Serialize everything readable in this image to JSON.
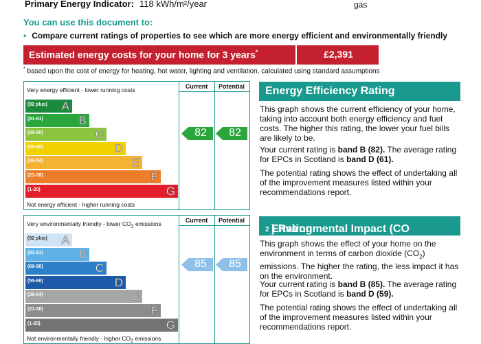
{
  "header": {
    "pei_label": "Primary Energy Indicator:",
    "pei_value": "118 kWh/m²/year",
    "fuel": "gas"
  },
  "uses": {
    "title": "You can use this document to:",
    "bullet": "Compare current ratings of properties to see which are more energy efficient and environmentally friendly"
  },
  "cost": {
    "label": "Estimated energy costs for your home for 3 years",
    "marker": "*",
    "value": "£2,391",
    "footnote_marker": "*",
    "footnote": " based upon the cost of energy for heating, hot water, lighting and ventilation, calculated using standard assumptions"
  },
  "energy_chart": {
    "col_current": "Current",
    "col_potential": "Potential",
    "top_text": "Very energy efficient - lower running costs",
    "bottom_text": "Not energy efficient - higher running costs",
    "bands": [
      {
        "range": "(92 plus)",
        "letter": "A",
        "color": "#1a8a3c"
      },
      {
        "range": "(81-91)",
        "letter": "B",
        "color": "#2aa63c"
      },
      {
        "range": "(69-80)",
        "letter": "C",
        "color": "#8cc43f"
      },
      {
        "range": "(55-68)",
        "letter": "D",
        "color": "#f2d100"
      },
      {
        "range": "(39-54)",
        "letter": "E",
        "color": "#f5b335"
      },
      {
        "range": "(21-38)",
        "letter": "F",
        "color": "#ee7d2a"
      },
      {
        "range": "(1-20)",
        "letter": "G",
        "color": "#e31d2a"
      }
    ],
    "current": "82",
    "potential": "82",
    "arrow_color": "#2aa63c"
  },
  "env_chart": {
    "col_current": "Current",
    "col_potential": "Potential",
    "top_text_pre": "Very environmentally friendly - lower CO",
    "top_text_sub": "2",
    "top_text_post": " emissions",
    "bottom_text_pre": "Not environmentally friendly - higher CO",
    "bottom_text_sub": "2",
    "bottom_text_post": " emissions",
    "bands": [
      {
        "range": "(92 plus)",
        "letter": "A",
        "color": "#cfe3f4"
      },
      {
        "range": "(81-91)",
        "letter": "B",
        "color": "#5eb2e8"
      },
      {
        "range": "(69-80)",
        "letter": "C",
        "color": "#2e7fc9"
      },
      {
        "range": "(55-68)",
        "letter": "D",
        "color": "#1d5ba8"
      },
      {
        "range": "(39-54)",
        "letter": "E",
        "color": "#a6a6a6"
      },
      {
        "range": "(21-38)",
        "letter": "F",
        "color": "#8c8c8c"
      },
      {
        "range": "(1-20)",
        "letter": "G",
        "color": "#737373"
      }
    ],
    "current": "85",
    "potential": "85",
    "arrow_color": "#8fc0e8"
  },
  "eer_panel": {
    "title": "Energy Efficiency Rating",
    "p1": "This graph shows the current efficiency of your home, taking into account both energy efficiency and fuel costs. The higher this rating, the lower your fuel bills are likely to be.",
    "p2_pre": "Your current rating is ",
    "p2_bold1": "band B (82).",
    "p2_mid": " The average rating for EPCs in Scotland is ",
    "p2_bold2": "band D (61).",
    "p3": "The potential rating shows the effect of undertaking all of the improvement measures listed within your recommendations report."
  },
  "eir_panel": {
    "title_pre": "Environmental Impact (CO",
    "title_sub": "2",
    "title_post": ") Rating",
    "p1_pre": "This graph shows the effect of your home on the environment in terms of carbon dioxide (CO",
    "p1_sub": "2",
    "p1_post": ") emissions. The higher the rating, the less impact it has on the environment.",
    "p2_pre": "Your current rating is ",
    "p2_bold1": "band B (85).",
    "p2_mid": " The average rating for EPCs in Scotland is ",
    "p2_bold2": "band D (59).",
    "p3": "The potential rating shows the effect of undertaking all of the improvement measures listed within your recommendations report."
  }
}
